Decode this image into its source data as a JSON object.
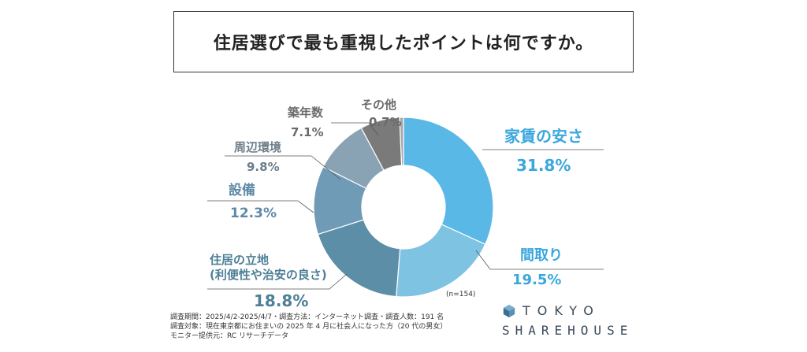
{
  "title": "住居選びで最も重視したポイントは何ですか。",
  "chart_data": {
    "type": "pie",
    "donut": true,
    "sample_note": "(n=154)",
    "slices": [
      {
        "label": "家賃の安さ",
        "value": 31.8,
        "pct": "31.8%",
        "color": "#5ab8e6",
        "label_color": "#3aa7dd"
      },
      {
        "label": "間取り",
        "value": 19.5,
        "pct": "19.5%",
        "color": "#7fc3e3",
        "label_color": "#3aa7dd"
      },
      {
        "label": "住居の立地\n(利便性や治安の良さ)",
        "value": 18.8,
        "pct": "18.8%",
        "color": "#5d8ea8",
        "label_color": "#4e7f97"
      },
      {
        "label": "設備",
        "value": 12.3,
        "pct": "12.3%",
        "color": "#6f9bb6",
        "label_color": "#5e8aa6"
      },
      {
        "label": "周辺環境",
        "value": 9.8,
        "pct": "9.8%",
        "color": "#8aa3b4",
        "label_color": "#6d7e8b"
      },
      {
        "label": "築年数",
        "value": 7.1,
        "pct": "7.1%",
        "color": "#7a7a7a",
        "label_color": "#6b6b6b"
      },
      {
        "label": "その他",
        "value": 0.7,
        "pct": "0.7%",
        "color": "#a8a8a8",
        "label_color": "#6b6b6b"
      }
    ]
  },
  "footer": {
    "line1": "調査期間：2025/4/2-2025/4/7・調査方法：インターネット調査・調査人数：191 名",
    "line2": "調査対象：現在東京都にお住まいの 2025 年 4 月に社会人になった方（20 代の男女）",
    "line3": "モニター提供元：RC リサーチデータ"
  },
  "logo": {
    "top": "TOKYO",
    "bottom": "SHAREHOUSE"
  }
}
